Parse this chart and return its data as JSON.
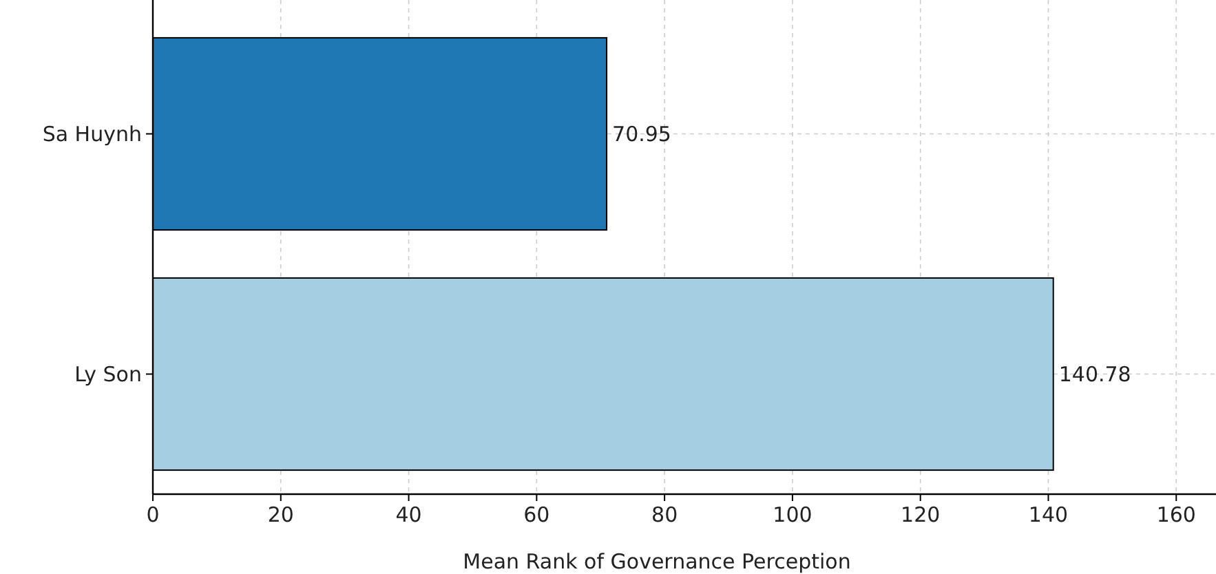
{
  "chart_data": {
    "type": "bar",
    "orientation": "horizontal",
    "categories": [
      "Sa Huynh",
      "Ly Son"
    ],
    "values": [
      70.95,
      140.78
    ],
    "colors": [
      "#1f78b4",
      "#a6cee3"
    ],
    "xlabel": "Mean Rank of Governance Perception",
    "xlim": [
      0,
      166
    ],
    "xticks": [
      0,
      20,
      40,
      60,
      80,
      100,
      120,
      140,
      160
    ],
    "grid": true,
    "data_labels": true
  }
}
